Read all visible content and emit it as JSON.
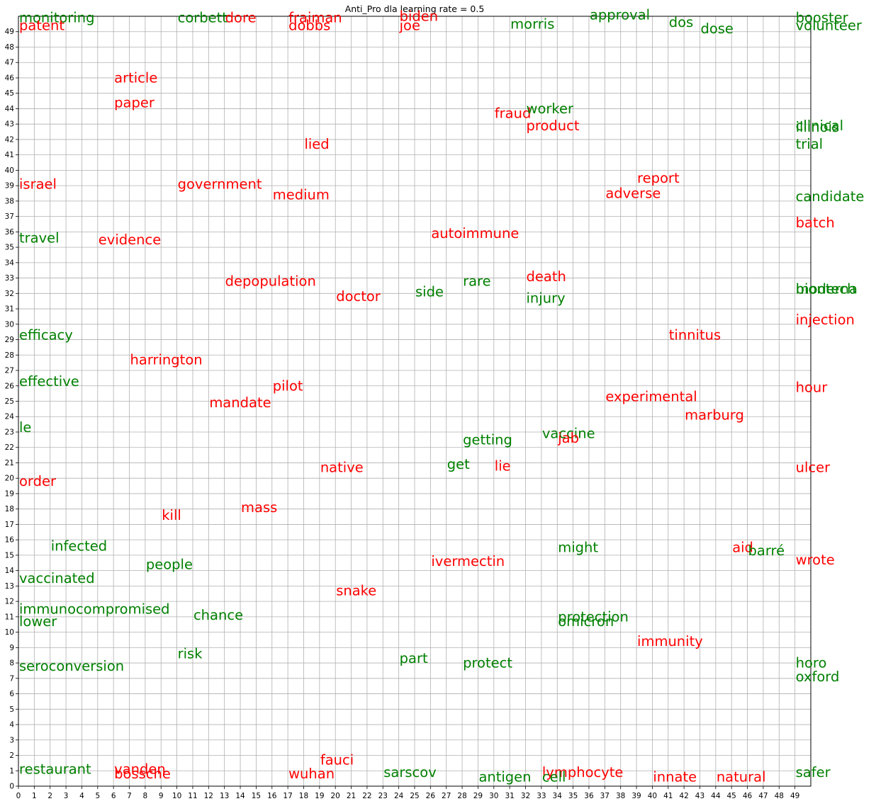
{
  "chart_data": {
    "type": "scatter",
    "title": "Anti_Pro dla learning rate = 0.5",
    "xlim": [
      0,
      50
    ],
    "ylim": [
      0,
      50
    ],
    "grid": true,
    "x_ticks": [
      "0",
      "1",
      "2",
      "3",
      "4",
      "5",
      "6",
      "7",
      "8",
      "9",
      "10",
      "11",
      "12",
      "13",
      "14",
      "15",
      "16",
      "17",
      "18",
      "19",
      "20",
      "21",
      "22",
      "23",
      "24",
      "25",
      "26",
      "27",
      "28",
      "29",
      "30",
      "31",
      "32",
      "33",
      "34",
      "35",
      "36",
      "37",
      "38",
      "39",
      "40",
      "41",
      "42",
      "43",
      "44",
      "45",
      "46",
      "47",
      "48",
      "49"
    ],
    "y_ticks": [
      "0",
      "1",
      "2",
      "3",
      "4",
      "5",
      "6",
      "7",
      "8",
      "9",
      "10",
      "11",
      "12",
      "13",
      "14",
      "15",
      "16",
      "17",
      "18",
      "19",
      "20",
      "21",
      "22",
      "23",
      "24",
      "25",
      "26",
      "27",
      "28",
      "29",
      "30",
      "31",
      "32",
      "33",
      "34",
      "35",
      "36",
      "37",
      "38",
      "39",
      "40",
      "41",
      "42",
      "43",
      "44",
      "45",
      "46",
      "47",
      "48",
      "49"
    ],
    "colors": {
      "anti": "#ff0000",
      "pro": "#008000"
    },
    "points": [
      {
        "text": "monitoring",
        "x": 0,
        "y": 49.6,
        "group": "pro"
      },
      {
        "text": "corbett",
        "x": 10,
        "y": 49.6,
        "group": "pro"
      },
      {
        "text": "dore",
        "x": 13,
        "y": 49.6,
        "group": "anti"
      },
      {
        "text": "fraiman",
        "x": 17,
        "y": 49.6,
        "group": "anti"
      },
      {
        "text": "biden",
        "x": 24,
        "y": 49.7,
        "group": "anti"
      },
      {
        "text": "approval",
        "x": 36,
        "y": 49.8,
        "group": "pro"
      },
      {
        "text": "booster",
        "x": 49,
        "y": 49.6,
        "group": "pro"
      },
      {
        "text": "patent",
        "x": 0,
        "y": 49.1,
        "group": "anti"
      },
      {
        "text": "dobbs",
        "x": 17,
        "y": 49.1,
        "group": "anti"
      },
      {
        "text": "joe",
        "x": 24,
        "y": 49.1,
        "group": "anti"
      },
      {
        "text": "morris",
        "x": 31,
        "y": 49.2,
        "group": "pro"
      },
      {
        "text": "dos",
        "x": 41,
        "y": 49.3,
        "group": "pro"
      },
      {
        "text": "dose",
        "x": 43,
        "y": 48.9,
        "group": "pro"
      },
      {
        "text": "volunteer",
        "x": 49,
        "y": 49.1,
        "group": "pro"
      },
      {
        "text": "article",
        "x": 6,
        "y": 45.7,
        "group": "anti"
      },
      {
        "text": "paper",
        "x": 6,
        "y": 44.1,
        "group": "anti"
      },
      {
        "text": "fraud",
        "x": 30,
        "y": 43.4,
        "group": "anti"
      },
      {
        "text": "worker",
        "x": 32,
        "y": 43.7,
        "group": "pro"
      },
      {
        "text": "product",
        "x": 32,
        "y": 42.6,
        "group": "anti"
      },
      {
        "text": "clinical",
        "x": 49,
        "y": 42.6,
        "group": "pro"
      },
      {
        "text": "illinois",
        "x": 49,
        "y": 42.5,
        "group": "pro"
      },
      {
        "text": "trial",
        "x": 49,
        "y": 41.4,
        "group": "pro"
      },
      {
        "text": "lied",
        "x": 18,
        "y": 41.4,
        "group": "anti"
      },
      {
        "text": "israel",
        "x": 0,
        "y": 38.8,
        "group": "anti"
      },
      {
        "text": "government",
        "x": 10,
        "y": 38.8,
        "group": "anti"
      },
      {
        "text": "medium",
        "x": 16,
        "y": 38.1,
        "group": "anti"
      },
      {
        "text": "report",
        "x": 39,
        "y": 39.2,
        "group": "anti"
      },
      {
        "text": "adverse",
        "x": 37,
        "y": 38.2,
        "group": "anti"
      },
      {
        "text": "candidate",
        "x": 49,
        "y": 38.0,
        "group": "pro"
      },
      {
        "text": "batch",
        "x": 49,
        "y": 36.3,
        "group": "anti"
      },
      {
        "text": "travel",
        "x": 0,
        "y": 35.3,
        "group": "pro"
      },
      {
        "text": "evidence",
        "x": 5,
        "y": 35.2,
        "group": "anti"
      },
      {
        "text": "autoimmune",
        "x": 26,
        "y": 35.6,
        "group": "anti"
      },
      {
        "text": "death",
        "x": 32,
        "y": 32.8,
        "group": "anti"
      },
      {
        "text": "depopulation",
        "x": 13,
        "y": 32.5,
        "group": "anti"
      },
      {
        "text": "rare",
        "x": 28,
        "y": 32.5,
        "group": "pro"
      },
      {
        "text": "side",
        "x": 25,
        "y": 31.8,
        "group": "pro"
      },
      {
        "text": "doctor",
        "x": 20,
        "y": 31.5,
        "group": "anti"
      },
      {
        "text": "injury",
        "x": 32,
        "y": 31.4,
        "group": "pro"
      },
      {
        "text": "biontech",
        "x": 49,
        "y": 32.0,
        "group": "pro"
      },
      {
        "text": "moderna",
        "x": 49,
        "y": 32.0,
        "group": "pro"
      },
      {
        "text": "injection",
        "x": 49,
        "y": 30.0,
        "group": "anti"
      },
      {
        "text": "efficacy",
        "x": 0,
        "y": 29.0,
        "group": "pro"
      },
      {
        "text": "tinnitus",
        "x": 41,
        "y": 29.0,
        "group": "anti"
      },
      {
        "text": "harrington",
        "x": 7,
        "y": 27.4,
        "group": "anti"
      },
      {
        "text": "effective",
        "x": 0,
        "y": 26.0,
        "group": "pro"
      },
      {
        "text": "pilot",
        "x": 16,
        "y": 25.7,
        "group": "anti"
      },
      {
        "text": "hour",
        "x": 49,
        "y": 25.6,
        "group": "anti"
      },
      {
        "text": "experimental",
        "x": 37,
        "y": 25.0,
        "group": "anti"
      },
      {
        "text": "mandate",
        "x": 12,
        "y": 24.6,
        "group": "anti"
      },
      {
        "text": "marburg",
        "x": 42,
        "y": 23.8,
        "group": "anti"
      },
      {
        "text": "le",
        "x": 0,
        "y": 23.0,
        "group": "pro"
      },
      {
        "text": "vaccine",
        "x": 33,
        "y": 22.6,
        "group": "pro"
      },
      {
        "text": "jab",
        "x": 34,
        "y": 22.3,
        "group": "anti"
      },
      {
        "text": "getting",
        "x": 28,
        "y": 22.2,
        "group": "pro"
      },
      {
        "text": "get",
        "x": 27,
        "y": 20.6,
        "group": "pro"
      },
      {
        "text": "lie",
        "x": 30,
        "y": 20.5,
        "group": "anti"
      },
      {
        "text": "native",
        "x": 19,
        "y": 20.4,
        "group": "anti"
      },
      {
        "text": "ulcer",
        "x": 49,
        "y": 20.4,
        "group": "anti"
      },
      {
        "text": "order",
        "x": 0,
        "y": 19.5,
        "group": "anti"
      },
      {
        "text": "mass",
        "x": 14,
        "y": 17.8,
        "group": "anti"
      },
      {
        "text": "kill",
        "x": 9,
        "y": 17.3,
        "group": "anti"
      },
      {
        "text": "infected",
        "x": 2,
        "y": 15.3,
        "group": "pro"
      },
      {
        "text": "might",
        "x": 34,
        "y": 15.2,
        "group": "pro"
      },
      {
        "text": "aid",
        "x": 45,
        "y": 15.2,
        "group": "anti"
      },
      {
        "text": "barré",
        "x": 46,
        "y": 15.0,
        "group": "pro"
      },
      {
        "text": "wrote",
        "x": 49,
        "y": 14.4,
        "group": "anti"
      },
      {
        "text": "ivermectin",
        "x": 26,
        "y": 14.3,
        "group": "anti"
      },
      {
        "text": "people",
        "x": 8,
        "y": 14.1,
        "group": "pro"
      },
      {
        "text": "vaccinated",
        "x": 0,
        "y": 13.2,
        "group": "pro"
      },
      {
        "text": "snake",
        "x": 20,
        "y": 12.4,
        "group": "anti"
      },
      {
        "text": "immunocompromised",
        "x": 0,
        "y": 11.2,
        "group": "pro"
      },
      {
        "text": "chance",
        "x": 11,
        "y": 10.8,
        "group": "pro"
      },
      {
        "text": "protection",
        "x": 34,
        "y": 10.7,
        "group": "pro"
      },
      {
        "text": "lower",
        "x": 0,
        "y": 10.4,
        "group": "pro"
      },
      {
        "text": "omicron",
        "x": 34,
        "y": 10.4,
        "group": "pro"
      },
      {
        "text": "immunity",
        "x": 39,
        "y": 9.1,
        "group": "anti"
      },
      {
        "text": "risk",
        "x": 10,
        "y": 8.3,
        "group": "pro"
      },
      {
        "text": "part",
        "x": 24,
        "y": 8.0,
        "group": "pro"
      },
      {
        "text": "protect",
        "x": 28,
        "y": 7.7,
        "group": "pro"
      },
      {
        "text": "horo",
        "x": 49,
        "y": 7.7,
        "group": "pro"
      },
      {
        "text": "seroconversion",
        "x": 0,
        "y": 7.5,
        "group": "pro"
      },
      {
        "text": "oxford",
        "x": 49,
        "y": 6.8,
        "group": "pro"
      },
      {
        "text": "fauci",
        "x": 19,
        "y": 1.4,
        "group": "anti"
      },
      {
        "text": "restaurant",
        "x": 0,
        "y": 0.8,
        "group": "pro"
      },
      {
        "text": "vanden",
        "x": 6,
        "y": 0.8,
        "group": "anti"
      },
      {
        "text": "safer",
        "x": 49,
        "y": 0.6,
        "group": "pro"
      },
      {
        "text": "sarscov",
        "x": 23,
        "y": 0.6,
        "group": "pro"
      },
      {
        "text": "lymphocyte",
        "x": 33,
        "y": 0.6,
        "group": "anti"
      },
      {
        "text": "bossche",
        "x": 6,
        "y": 0.5,
        "group": "anti"
      },
      {
        "text": "wuhan",
        "x": 17,
        "y": 0.5,
        "group": "anti"
      },
      {
        "text": "antigen",
        "x": 29,
        "y": 0.3,
        "group": "pro"
      },
      {
        "text": "cell",
        "x": 33,
        "y": 0.3,
        "group": "pro"
      },
      {
        "text": "innate",
        "x": 40,
        "y": 0.3,
        "group": "anti"
      },
      {
        "text": "natural",
        "x": 44,
        "y": 0.3,
        "group": "anti"
      }
    ]
  }
}
